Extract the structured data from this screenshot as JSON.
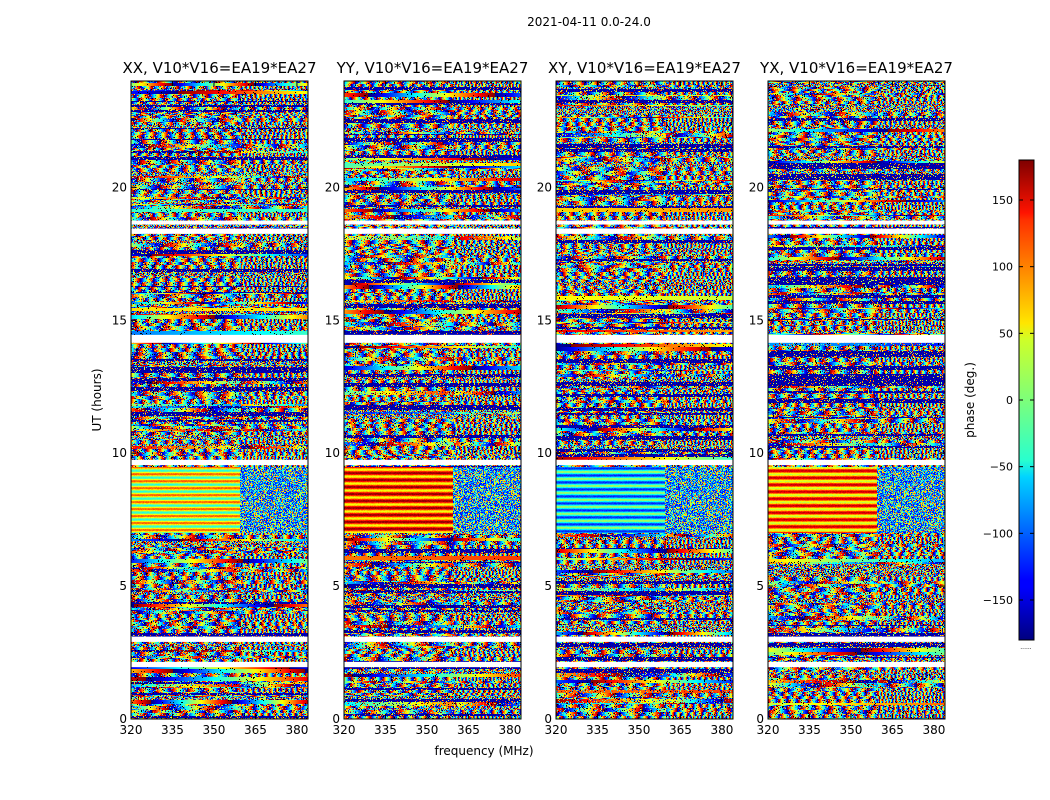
{
  "chart_data": {
    "type": "heatmap",
    "suptitle": "2021-04-11 0.0-24.0",
    "xlabel": "frequency (MHz)",
    "ylabel": "UT (hours)",
    "xlim": [
      320,
      384
    ],
    "ylim": [
      0,
      24
    ],
    "xticks": [
      320,
      335,
      350,
      365,
      380
    ],
    "yticks": [
      0,
      5,
      10,
      15,
      20
    ],
    "panels": [
      {
        "title": "XX, V10*V16=EA19*EA27"
      },
      {
        "title": "YY, V10*V16=EA19*EA27"
      },
      {
        "title": "XY, V10*V16=EA19*EA27"
      },
      {
        "title": "YX, V10*V16=EA19*EA27"
      }
    ],
    "gaps_hours": [
      [
        1.95,
        2.15
      ],
      [
        2.9,
        3.1
      ],
      [
        9.55,
        9.75
      ],
      [
        14.15,
        14.45
      ],
      [
        18.25,
        18.45
      ],
      [
        18.6,
        18.75
      ]
    ],
    "colorbar": {
      "label": "phase (deg.)",
      "range": [
        -180,
        180
      ],
      "ticks": [
        150,
        100,
        50,
        0,
        -50,
        -100,
        -150
      ],
      "colormap": "jet",
      "footer": "......"
    }
  }
}
